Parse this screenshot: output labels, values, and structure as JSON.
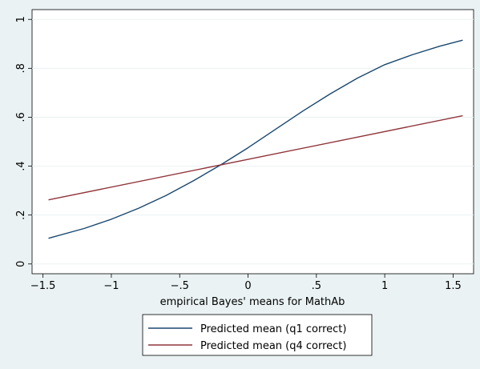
{
  "chart_data": {
    "type": "line",
    "xlabel": "empirical Bayes' means for MathAb",
    "ylabel": "",
    "xlim": [
      -1.58,
      1.65
    ],
    "ylim": [
      -0.04,
      1.04
    ],
    "x_ticks": [
      -1.5,
      -1,
      -0.5,
      0,
      0.5,
      1,
      1.5
    ],
    "x_tick_labels": [
      "−1.5",
      "−1",
      "−.5",
      "0",
      ".5",
      "1",
      "1.5"
    ],
    "y_ticks": [
      0,
      0.2,
      0.4,
      0.6,
      0.8,
      1
    ],
    "y_tick_labels": [
      "0",
      ".2",
      ".4",
      ".6",
      ".8",
      "1"
    ],
    "grid": "horizontal",
    "legend_position": "bottom",
    "series": [
      {
        "name": "Predicted mean (q1 correct)",
        "color": "#1a476f",
        "x": [
          -1.46,
          -1.2,
          -1.0,
          -0.8,
          -0.6,
          -0.4,
          -0.2,
          0.0,
          0.2,
          0.4,
          0.6,
          0.8,
          1.0,
          1.2,
          1.4,
          1.57
        ],
        "y": [
          0.105,
          0.145,
          0.183,
          0.228,
          0.28,
          0.34,
          0.405,
          0.475,
          0.55,
          0.625,
          0.695,
          0.76,
          0.815,
          0.855,
          0.89,
          0.915
        ]
      },
      {
        "name": "Predicted mean (q4 correct)",
        "color": "#90353b",
        "x": [
          -1.46,
          1.57
        ],
        "y": [
          0.262,
          0.606
        ]
      }
    ]
  }
}
